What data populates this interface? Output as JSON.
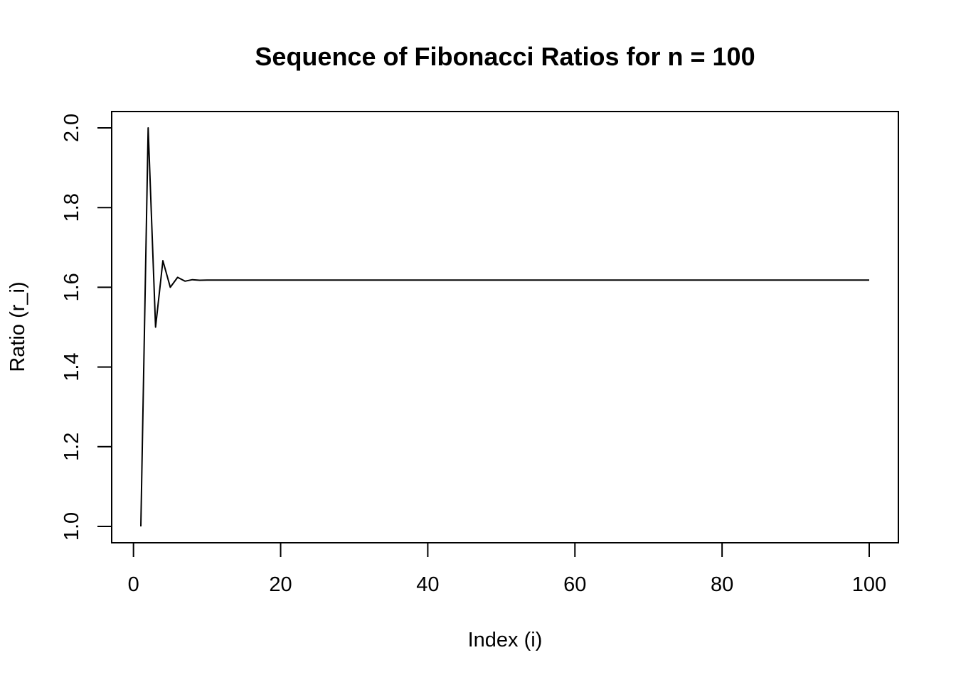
{
  "chart_data": {
    "type": "line",
    "title": "Sequence of Fibonacci Ratios for n = 100",
    "xlabel": "Index (i)",
    "ylabel": "Ratio (r_i)",
    "xlim": [
      1,
      100
    ],
    "ylim": [
      1.0,
      2.0
    ],
    "x_ticks": [
      0,
      20,
      40,
      60,
      80,
      100
    ],
    "x_tick_labels": [
      "0",
      "20",
      "40",
      "60",
      "80",
      "100"
    ],
    "y_ticks": [
      1.0,
      1.2,
      1.4,
      1.6,
      1.8,
      2.0
    ],
    "y_tick_labels": [
      "1.0",
      "1.2",
      "1.4",
      "1.6",
      "1.8",
      "2.0"
    ],
    "grid": false,
    "legend": "none",
    "line_color": "#000000",
    "series": [
      {
        "x_start": 1,
        "x_end": 100,
        "values_head": [
          1.0,
          2.0,
          1.5,
          1.6667,
          1.6,
          1.625,
          1.6154,
          1.619,
          1.6176,
          1.6182,
          1.618,
          1.618
        ],
        "converged_value": 1.618
      }
    ]
  }
}
